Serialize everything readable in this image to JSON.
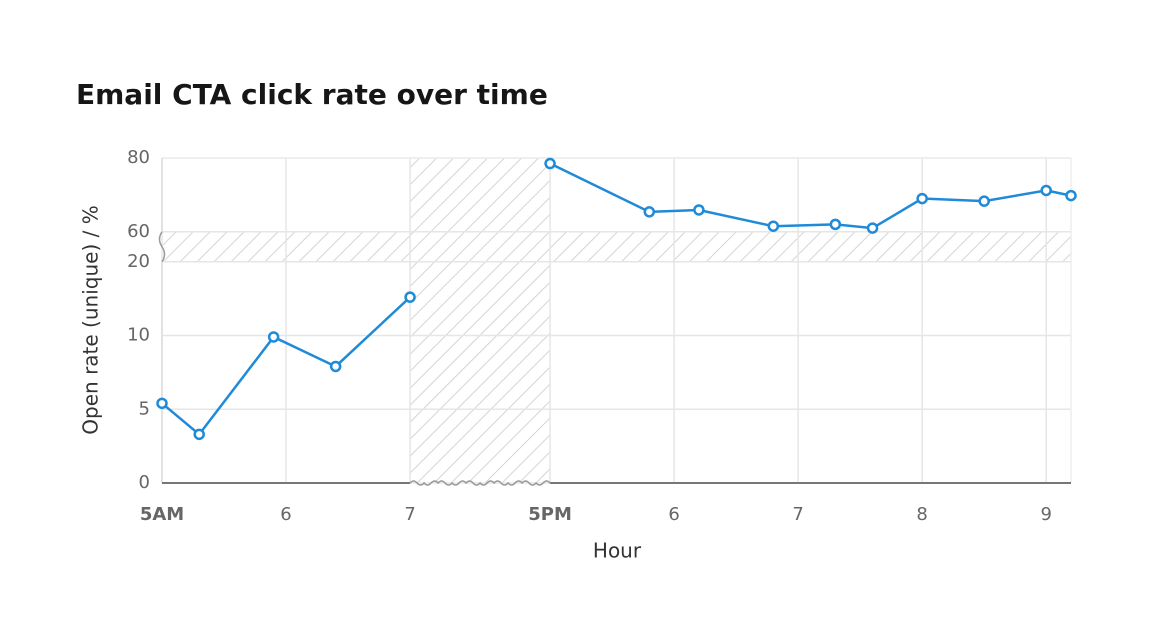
{
  "chart_data": {
    "type": "line",
    "title": "Email CTA click rate over time",
    "xlabel": "Hour",
    "ylabel": "Open rate (unique) / %",
    "xlim": [
      5,
      21.2
    ],
    "x_breaks": [
      [
        7,
        17
      ]
    ],
    "xticks": [
      {
        "value": 5,
        "label": "5AM"
      },
      6,
      7,
      {
        "value": 17,
        "label": "5PM"
      },
      {
        "value": 18,
        "label": "6"
      },
      {
        "value": 19,
        "label": "7"
      },
      {
        "value": 20,
        "label": "8"
      },
      {
        "value": 21,
        "label": "9"
      }
    ],
    "ylim": [
      0,
      80
    ],
    "y_breaks": [
      [
        20,
        60
      ]
    ],
    "yticks": [
      0,
      5,
      10,
      20,
      60,
      80
    ],
    "grid": true,
    "series": [
      {
        "color": "#1f8ad8",
        "x": [
          5,
          5.3,
          5.9,
          6.4,
          7
        ],
        "values": [
          5.4,
          3.3,
          9.9,
          7.9,
          15.2
        ]
      },
      {
        "color": "#1f8ad8",
        "x": [
          17,
          17.8,
          18.2,
          18.8,
          19.3,
          19.6,
          20,
          20.5,
          21,
          21.2
        ],
        "values": [
          78.5,
          65.4,
          65.9,
          61.5,
          62.0,
          61.0,
          69.0,
          68.3,
          71.2,
          69.8
        ]
      }
    ]
  }
}
